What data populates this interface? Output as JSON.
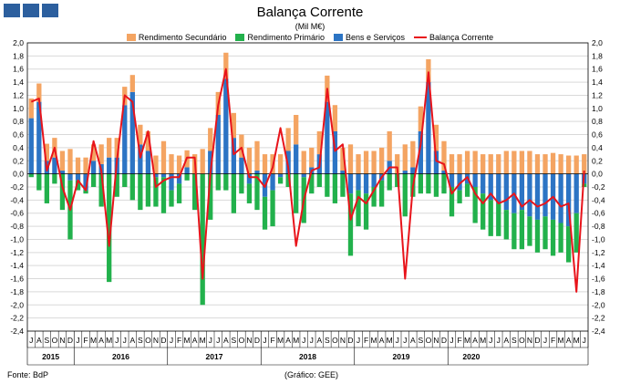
{
  "title": "Balança Corrente",
  "subtitle": "(Mil M€)",
  "footer": {
    "source": "Fonte: BdP",
    "note": "(Gráfico: GEE)"
  },
  "colors": {
    "secundario": "#f4a462",
    "primario": "#22b14c",
    "bens": "#2c74c4",
    "corrente": "#e8141b",
    "grid": "#d9d9d9",
    "logo": "#2c5f9e"
  },
  "chart_data": {
    "type": "bar",
    "ylim": [
      -2.4,
      2.0
    ],
    "yticks": [
      "2,0",
      "1,8",
      "1,6",
      "1,4",
      "1,2",
      "1,0",
      "0,8",
      "0,6",
      "0,4",
      "0,2",
      "0,0",
      "-0,2",
      "-0,4",
      "-0,6",
      "-0,8",
      "-1,0",
      "-1,2",
      "-1,4",
      "-1,6",
      "-1,8",
      "-2,0",
      "-2,2",
      "-2,4"
    ],
    "categories": [
      "J",
      "A",
      "S",
      "O",
      "N",
      "D",
      "J",
      "F",
      "M",
      "A",
      "M",
      "J",
      "J",
      "A",
      "S",
      "O",
      "N",
      "D",
      "J",
      "F",
      "M",
      "A",
      "M",
      "J",
      "J",
      "A",
      "S",
      "O",
      "N",
      "D",
      "J",
      "F",
      "M",
      "A",
      "M",
      "J",
      "J",
      "A",
      "S",
      "O",
      "N",
      "D",
      "J",
      "F",
      "M",
      "A",
      "M",
      "J",
      "J",
      "A",
      "S",
      "O",
      "N",
      "D",
      "J",
      "F",
      "M",
      "A",
      "M",
      "J",
      "J",
      "A",
      "S",
      "O",
      "N",
      "D",
      "J",
      "F",
      "M",
      "A",
      "M",
      "J"
    ],
    "years": [
      {
        "label": "2015",
        "start": 0,
        "count": 6
      },
      {
        "label": "2016",
        "start": 6,
        "count": 12
      },
      {
        "label": "2017",
        "start": 18,
        "count": 12
      },
      {
        "label": "2018",
        "start": 30,
        "count": 12
      },
      {
        "label": "2019",
        "start": 42,
        "count": 12
      },
      {
        "label": "2020",
        "start": 54,
        "count": 6
      }
    ],
    "series": [
      {
        "name": "Rendimento Secundário",
        "values": [
          0.3,
          0.28,
          0.26,
          0.3,
          0.3,
          0.38,
          0.25,
          0.25,
          0.25,
          0.3,
          0.3,
          0.3,
          0.28,
          0.26,
          0.3,
          0.3,
          0.28,
          0.5,
          0.3,
          0.28,
          0.26,
          0.3,
          0.38,
          0.35,
          0.35,
          0.4,
          0.38,
          0.35,
          0.4,
          0.45,
          0.3,
          0.3,
          0.3,
          0.35,
          0.45,
          0.35,
          0.3,
          0.35,
          0.4,
          0.4,
          0.35,
          0.45,
          0.3,
          0.35,
          0.35,
          0.4,
          0.45,
          0.3,
          0.4,
          0.4,
          0.38,
          0.35,
          0.4,
          0.45,
          0.3,
          0.3,
          0.35,
          0.35,
          0.3,
          0.3,
          0.3,
          0.35,
          0.35,
          0.35,
          0.35,
          0.3,
          0.3,
          0.32,
          0.3,
          0.28,
          0.28,
          0.3
        ]
      },
      {
        "name": "Rendimento Primário",
        "values": [
          -0.05,
          -0.25,
          -0.45,
          -0.15,
          -0.55,
          -0.9,
          -0.15,
          -0.05,
          -0.2,
          -0.5,
          -1.65,
          -0.35,
          -0.2,
          -0.4,
          -0.55,
          -0.5,
          -0.45,
          -0.55,
          -0.25,
          -0.3,
          -0.1,
          -0.55,
          -2.0,
          -0.7,
          -0.25,
          -0.25,
          -0.6,
          -0.3,
          -0.3,
          -0.55,
          -0.5,
          -0.55,
          -0.1,
          -0.2,
          -0.6,
          -0.7,
          -0.3,
          -0.2,
          -0.35,
          -0.45,
          -0.35,
          -0.95,
          -0.55,
          -0.55,
          -0.3,
          -0.4,
          -0.25,
          -0.2,
          -0.65,
          -0.35,
          -0.3,
          -0.3,
          -0.35,
          -0.3,
          -0.45,
          -0.2,
          -0.2,
          -0.55,
          -0.55,
          -0.55,
          -0.5,
          -0.45,
          -0.55,
          -0.6,
          -0.45,
          -0.5,
          -0.5,
          -0.55,
          -0.45,
          -0.55,
          -0.6,
          -0.05
        ]
      },
      {
        "name": "Bens e Serviços",
        "values": [
          0.85,
          1.1,
          0.2,
          0.25,
          0.05,
          -0.1,
          -0.1,
          -0.25,
          0.2,
          0.15,
          0.25,
          0.25,
          1.05,
          1.25,
          0.45,
          0.35,
          -0.05,
          -0.05,
          -0.25,
          -0.15,
          0.1,
          0.0,
          0.0,
          0.35,
          0.9,
          1.45,
          0.55,
          0.25,
          -0.15,
          0.05,
          -0.35,
          -0.25,
          -0.05,
          0.35,
          0.45,
          -0.05,
          0.1,
          0.3,
          1.1,
          0.65,
          0.05,
          -0.3,
          -0.25,
          -0.3,
          -0.2,
          -0.1,
          0.2,
          0.0,
          0.05,
          0.1,
          0.65,
          1.4,
          0.35,
          0.05,
          -0.2,
          -0.25,
          -0.15,
          -0.2,
          -0.3,
          -0.4,
          -0.45,
          -0.55,
          -0.6,
          -0.55,
          -0.65,
          -0.7,
          -0.65,
          -0.7,
          -0.75,
          -0.8,
          -0.6,
          -0.15
        ]
      },
      {
        "name": "Balança Corrente",
        "values": [
          1.1,
          1.15,
          0.05,
          0.4,
          -0.2,
          -0.55,
          -0.1,
          -0.25,
          0.5,
          0.05,
          -1.1,
          0.2,
          1.2,
          1.1,
          0.25,
          0.65,
          -0.2,
          -0.1,
          -0.05,
          -0.05,
          0.25,
          0.25,
          -1.6,
          0.0,
          1.05,
          1.6,
          0.3,
          0.4,
          -0.05,
          -0.05,
          -0.2,
          0.1,
          0.7,
          0.1,
          -1.1,
          -0.4,
          0.05,
          0.1,
          1.3,
          0.35,
          0.45,
          -0.7,
          -0.35,
          -0.45,
          -0.25,
          -0.05,
          0.1,
          0.1,
          -1.6,
          -0.2,
          0.45,
          1.55,
          0.2,
          0.15,
          -0.3,
          -0.15,
          -0.05,
          -0.3,
          -0.45,
          -0.3,
          -0.45,
          -0.4,
          -0.3,
          -0.5,
          -0.4,
          -0.5,
          -0.45,
          -0.35,
          -0.5,
          -0.45,
          -1.8,
          0.05
        ]
      }
    ]
  }
}
